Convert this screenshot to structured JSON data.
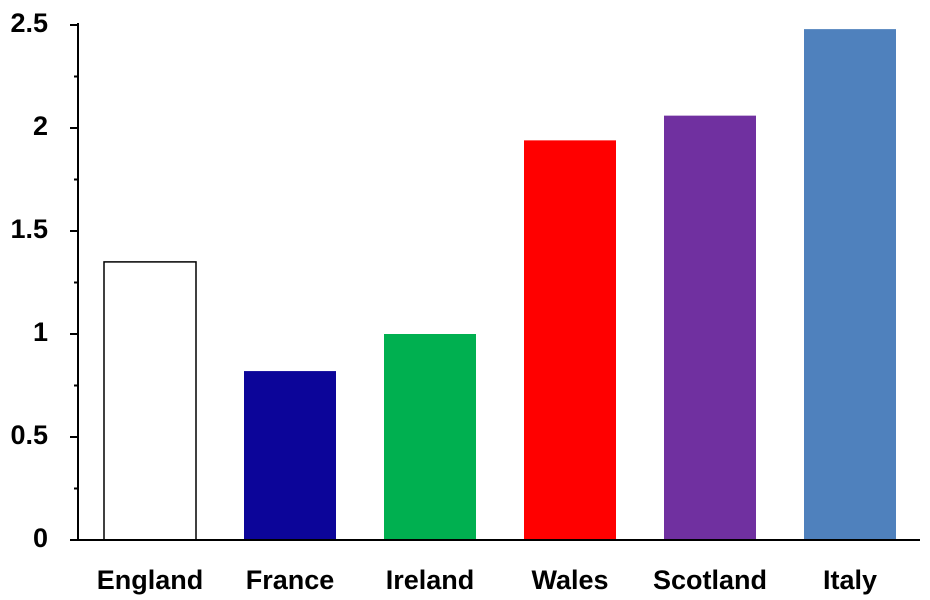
{
  "chart_data": {
    "type": "bar",
    "categories": [
      "England",
      "France",
      "Ireland",
      "Wales",
      "Scotland",
      "Italy"
    ],
    "values": [
      1.35,
      0.82,
      1.0,
      1.94,
      2.06,
      2.48
    ],
    "colors": [
      "#ffffff",
      "#0c0599",
      "#00b050",
      "#ff0000",
      "#7030a0",
      "#4f81bd"
    ],
    "edgecolors": [
      "#000000",
      null,
      null,
      null,
      null,
      null
    ],
    "ylim": [
      0,
      2.5
    ],
    "yticks": [
      0,
      0.5,
      1,
      1.5,
      2,
      2.5
    ],
    "yticks_minor": [
      0.25,
      0.75,
      1.25,
      1.75,
      2.25
    ],
    "grid": false
  }
}
